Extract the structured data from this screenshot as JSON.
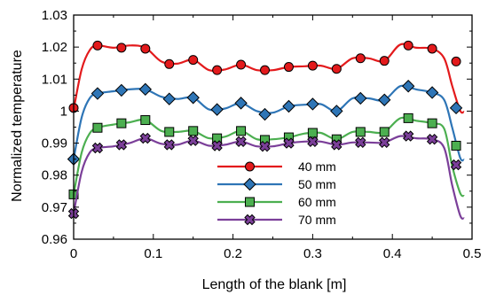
{
  "chart_data": {
    "type": "line",
    "xlabel": "Length of the blank [m]",
    "ylabel": "Normalized temperature",
    "xlim": [
      0,
      0.5
    ],
    "ylim": [
      0.96,
      1.03
    ],
    "x_ticks": [
      0,
      0.1,
      0.2,
      0.3,
      0.4,
      0.5
    ],
    "x_tick_labels": [
      "0",
      "0.1",
      "0.2",
      "0.3",
      "0.4",
      "0.5"
    ],
    "y_ticks": [
      0.96,
      0.97,
      0.98,
      0.99,
      1.0,
      1.01,
      1.02,
      1.03
    ],
    "y_tick_labels": [
      "0.96",
      "0.97",
      "0.98",
      "0.99",
      "1",
      "1.01",
      "1.02",
      "1.03"
    ],
    "grid": false,
    "legend_position": "lower-center",
    "series": [
      {
        "name": "40 mm",
        "color": "#e31a1c",
        "marker": "circle",
        "x": [
          0,
          0.03,
          0.06,
          0.09,
          0.12,
          0.15,
          0.18,
          0.21,
          0.24,
          0.27,
          0.3,
          0.33,
          0.36,
          0.39,
          0.42,
          0.45,
          0.48
        ],
        "values": [
          1.001,
          1.0205,
          1.0198,
          1.0195,
          1.0147,
          1.016,
          1.0128,
          1.0145,
          1.0128,
          1.0138,
          1.0142,
          1.0132,
          1.0165,
          1.0157,
          1.0205,
          1.0195,
          1.0155
        ],
        "curve_x": [
          0,
          0.01,
          0.02,
          0.03,
          0.05,
          0.07,
          0.09,
          0.11,
          0.13,
          0.15,
          0.17,
          0.19,
          0.21,
          0.23,
          0.25,
          0.27,
          0.29,
          0.31,
          0.33,
          0.35,
          0.37,
          0.39,
          0.41,
          0.43,
          0.45,
          0.465,
          0.475,
          0.485,
          0.49
        ],
        "curve_y": [
          1.0005,
          1.013,
          1.019,
          1.0205,
          1.0198,
          1.0205,
          1.0198,
          1.0155,
          1.0148,
          1.016,
          1.0128,
          1.013,
          1.0145,
          1.0128,
          1.0128,
          1.0138,
          1.014,
          1.0142,
          1.0132,
          1.0165,
          1.0165,
          1.0157,
          1.0208,
          1.0198,
          1.0195,
          1.0165,
          1.008,
          1.0002,
          0.9998
        ]
      },
      {
        "name": "50 mm",
        "color": "#2e75b6",
        "marker": "diamond",
        "x": [
          0,
          0.03,
          0.06,
          0.09,
          0.12,
          0.15,
          0.18,
          0.21,
          0.24,
          0.27,
          0.3,
          0.33,
          0.36,
          0.39,
          0.42,
          0.45,
          0.48
        ],
        "values": [
          0.985,
          1.0055,
          1.0065,
          1.0068,
          1.0038,
          1.0042,
          1.0005,
          1.0025,
          0.999,
          1.0015,
          1.0022,
          1.0,
          1.004,
          1.0035,
          1.0078,
          1.0058,
          1.001
        ],
        "curve_x": [
          0,
          0.01,
          0.02,
          0.03,
          0.05,
          0.07,
          0.09,
          0.11,
          0.13,
          0.15,
          0.17,
          0.19,
          0.21,
          0.23,
          0.25,
          0.27,
          0.29,
          0.31,
          0.33,
          0.35,
          0.37,
          0.39,
          0.41,
          0.43,
          0.45,
          0.465,
          0.475,
          0.485,
          0.49
        ],
        "curve_y": [
          0.985,
          0.998,
          1.004,
          1.0055,
          1.0062,
          1.0068,
          1.0068,
          1.0045,
          1.0038,
          1.0042,
          1.0005,
          1.0008,
          1.0025,
          1.0,
          0.9995,
          1.0015,
          1.002,
          1.0022,
          1.0,
          1.004,
          1.004,
          1.0035,
          1.0078,
          1.0068,
          1.0058,
          1.0035,
          0.995,
          0.9855,
          0.9848
        ]
      },
      {
        "name": "60 mm",
        "color": "#4caf50",
        "marker": "square",
        "x": [
          0,
          0.03,
          0.06,
          0.09,
          0.12,
          0.15,
          0.18,
          0.21,
          0.24,
          0.27,
          0.3,
          0.33,
          0.36,
          0.39,
          0.42,
          0.45,
          0.48
        ],
        "values": [
          0.974,
          0.9948,
          0.9962,
          0.9972,
          0.9935,
          0.9938,
          0.9915,
          0.9938,
          0.991,
          0.9918,
          0.9932,
          0.9912,
          0.9935,
          0.9935,
          0.9978,
          0.9962,
          0.9892
        ],
        "curve_x": [
          0,
          0.01,
          0.02,
          0.03,
          0.05,
          0.07,
          0.09,
          0.11,
          0.13,
          0.15,
          0.17,
          0.19,
          0.21,
          0.23,
          0.25,
          0.27,
          0.29,
          0.31,
          0.33,
          0.35,
          0.37,
          0.39,
          0.41,
          0.43,
          0.45,
          0.465,
          0.475,
          0.485,
          0.49
        ],
        "curve_y": [
          0.974,
          0.987,
          0.993,
          0.9948,
          0.9958,
          0.9965,
          0.9972,
          0.9938,
          0.9935,
          0.9938,
          0.9915,
          0.992,
          0.9938,
          0.9912,
          0.9912,
          0.9918,
          0.993,
          0.9932,
          0.9912,
          0.9935,
          0.9935,
          0.9935,
          0.9978,
          0.997,
          0.9962,
          0.9945,
          0.983,
          0.9745,
          0.9735
        ]
      },
      {
        "name": "70 mm",
        "color": "#7b3f99",
        "marker": "x",
        "x": [
          0,
          0.03,
          0.06,
          0.09,
          0.12,
          0.15,
          0.18,
          0.21,
          0.24,
          0.27,
          0.3,
          0.33,
          0.36,
          0.39,
          0.42,
          0.45,
          0.48
        ],
        "values": [
          0.968,
          0.9885,
          0.9895,
          0.9915,
          0.9895,
          0.9908,
          0.9892,
          0.9905,
          0.989,
          0.99,
          0.9905,
          0.9895,
          0.9902,
          0.9902,
          0.9922,
          0.9912,
          0.9832
        ],
        "curve_x": [
          0,
          0.01,
          0.02,
          0.03,
          0.05,
          0.07,
          0.09,
          0.11,
          0.13,
          0.15,
          0.17,
          0.19,
          0.21,
          0.23,
          0.25,
          0.27,
          0.29,
          0.31,
          0.33,
          0.35,
          0.37,
          0.39,
          0.41,
          0.43,
          0.45,
          0.465,
          0.475,
          0.485,
          0.49
        ],
        "curve_y": [
          0.968,
          0.981,
          0.987,
          0.9885,
          0.989,
          0.99,
          0.9915,
          0.9898,
          0.9895,
          0.9908,
          0.9892,
          0.9895,
          0.9905,
          0.989,
          0.989,
          0.99,
          0.9905,
          0.9905,
          0.9895,
          0.9902,
          0.9902,
          0.9902,
          0.9922,
          0.9915,
          0.9912,
          0.9885,
          0.977,
          0.9675,
          0.9665
        ]
      }
    ]
  }
}
